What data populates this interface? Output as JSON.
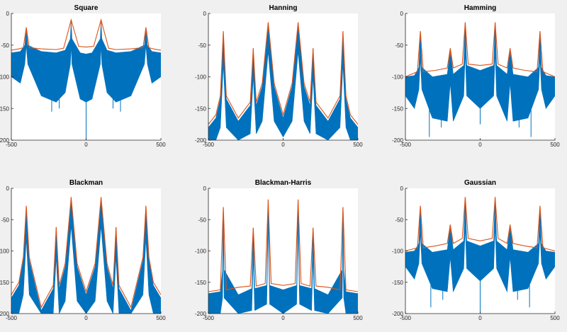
{
  "window": {
    "background": "#f0f0f0"
  },
  "colors": {
    "band": "#0072bd",
    "envelope": "#d95319",
    "axes_bg": "#ffffff",
    "axis_line": "#262626"
  },
  "chart_data": [
    {
      "type": "line",
      "title": "Square",
      "xlim": [
        -500,
        500
      ],
      "ylim": [
        -200,
        0
      ],
      "xticks": [
        -500,
        0,
        500
      ],
      "yticks": [
        0,
        -50,
        -100,
        -150,
        -200
      ],
      "peaks": [
        {
          "x": -400,
          "y": -22
        },
        {
          "x": -100,
          "y": -10
        },
        {
          "x": 100,
          "y": -10
        },
        {
          "x": 400,
          "y": -22
        }
      ],
      "series": [
        {
          "x": [
            -500,
            -450,
            -420,
            -400,
            -380,
            -300,
            -200,
            -150,
            -100,
            -50,
            0,
            50,
            100,
            150,
            200,
            300,
            380,
            400,
            420,
            450,
            500
          ],
          "y": [
            -58,
            -56,
            -54,
            -22,
            -54,
            -56,
            -57,
            -55,
            -10,
            -52,
            -53,
            -52,
            -10,
            -55,
            -57,
            -56,
            -54,
            -22,
            -54,
            -56,
            -58
          ]
        },
        {
          "x": [
            -500,
            -440,
            -410,
            -400,
            -390,
            -300,
            -200,
            -140,
            -105,
            -100,
            -95,
            -40,
            0,
            40,
            95,
            100,
            105,
            140,
            200,
            300,
            390,
            400,
            410,
            440,
            500
          ],
          "upper": [
            -62,
            -60,
            -50,
            -22,
            -50,
            -60,
            -62,
            -58,
            -40,
            -10,
            -40,
            -62,
            -64,
            -62,
            -40,
            -10,
            -40,
            -58,
            -62,
            -60,
            -50,
            -22,
            -50,
            -60,
            -62
          ],
          "lower": [
            -100,
            -110,
            -80,
            -50,
            -80,
            -130,
            -140,
            -125,
            -80,
            -50,
            -80,
            -135,
            -140,
            -135,
            -80,
            -50,
            -80,
            -125,
            -140,
            -130,
            -80,
            -50,
            -80,
            -110,
            -100
          ]
        }
      ],
      "dips": [
        {
          "x": 0,
          "y": -200
        },
        {
          "x": -230,
          "y": -155
        },
        {
          "x": 230,
          "y": -155
        },
        {
          "x": -180,
          "y": -150
        },
        {
          "x": 180,
          "y": -150
        }
      ]
    },
    {
      "type": "line",
      "title": "Hanning",
      "xlim": [
        -500,
        500
      ],
      "ylim": [
        -200,
        0
      ],
      "xticks": [
        -500,
        0,
        500
      ],
      "yticks": [
        0,
        -50,
        -100,
        -150,
        -200
      ],
      "peaks": [
        {
          "x": -400,
          "y": -28
        },
        {
          "x": -200,
          "y": -55
        },
        {
          "x": -100,
          "y": -14
        },
        {
          "x": 100,
          "y": -14
        },
        {
          "x": 200,
          "y": -55
        },
        {
          "x": 400,
          "y": -28
        }
      ],
      "series": [
        {
          "x": [
            -500,
            -450,
            -420,
            -400,
            -380,
            -300,
            -220,
            -200,
            -180,
            -140,
            -100,
            -60,
            0,
            60,
            100,
            140,
            180,
            200,
            220,
            300,
            380,
            400,
            420,
            450,
            500
          ],
          "y": [
            -175,
            -160,
            -130,
            -28,
            -130,
            -165,
            -140,
            -55,
            -140,
            -110,
            -14,
            -110,
            -160,
            -110,
            -14,
            -110,
            -140,
            -55,
            -140,
            -165,
            -130,
            -28,
            -130,
            -160,
            -175
          ]
        },
        {
          "x": [
            -500,
            -450,
            -420,
            -400,
            -380,
            -300,
            -220,
            -200,
            -180,
            -140,
            -100,
            -60,
            0,
            60,
            100,
            140,
            180,
            200,
            220,
            300,
            380,
            400,
            420,
            450,
            500
          ],
          "upper": [
            -180,
            -165,
            -135,
            -30,
            -135,
            -170,
            -145,
            -60,
            -145,
            -115,
            -16,
            -115,
            -165,
            -115,
            -16,
            -115,
            -145,
            -60,
            -145,
            -170,
            -135,
            -30,
            -135,
            -165,
            -180
          ],
          "lower": [
            -200,
            -200,
            -180,
            -80,
            -180,
            -200,
            -190,
            -100,
            -190,
            -170,
            -60,
            -170,
            -195,
            -170,
            -60,
            -170,
            -190,
            -100,
            -190,
            -200,
            -180,
            -80,
            -180,
            -200,
            -200
          ]
        }
      ],
      "dips": []
    },
    {
      "type": "line",
      "title": "Hamming",
      "xlim": [
        -500,
        500
      ],
      "ylim": [
        -200,
        0
      ],
      "xticks": [
        -500,
        0,
        500
      ],
      "yticks": [
        0,
        -50,
        -100,
        -150,
        -200
      ],
      "peaks": [
        {
          "x": -400,
          "y": -28
        },
        {
          "x": -200,
          "y": -55
        },
        {
          "x": -100,
          "y": -14
        },
        {
          "x": 100,
          "y": -14
        },
        {
          "x": 200,
          "y": -55
        },
        {
          "x": 400,
          "y": -28
        }
      ],
      "series": [
        {
          "x": [
            -500,
            -420,
            -400,
            -380,
            -300,
            -220,
            -200,
            -180,
            -120,
            -100,
            -80,
            0,
            80,
            100,
            120,
            180,
            200,
            220,
            300,
            380,
            400,
            420,
            500
          ],
          "y": [
            -100,
            -92,
            -28,
            -92,
            -90,
            -86,
            -55,
            -86,
            -80,
            -14,
            -80,
            -82,
            -80,
            -14,
            -80,
            -86,
            -55,
            -86,
            -90,
            -92,
            -28,
            -92,
            -100
          ]
        },
        {
          "x": [
            -500,
            -440,
            -410,
            -400,
            -390,
            -320,
            -220,
            -200,
            -180,
            -110,
            -100,
            -90,
            0,
            90,
            100,
            110,
            180,
            200,
            220,
            320,
            390,
            400,
            410,
            440,
            500
          ],
          "upper": [
            -100,
            -98,
            -85,
            -30,
            -85,
            -100,
            -96,
            -58,
            -96,
            -82,
            -16,
            -82,
            -90,
            -82,
            -16,
            -82,
            -96,
            -58,
            -96,
            -100,
            -85,
            -30,
            -85,
            -98,
            -100
          ],
          "lower": [
            -130,
            -150,
            -120,
            -70,
            -120,
            -165,
            -170,
            -110,
            -170,
            -130,
            -60,
            -130,
            -150,
            -130,
            -60,
            -130,
            -170,
            -110,
            -170,
            -165,
            -120,
            -70,
            -120,
            -150,
            -130
          ]
        }
      ],
      "dips": [
        {
          "x": -340,
          "y": -195
        },
        {
          "x": 340,
          "y": -195
        },
        {
          "x": -260,
          "y": -180
        },
        {
          "x": 260,
          "y": -180
        },
        {
          "x": 0,
          "y": -175
        }
      ]
    },
    {
      "type": "line",
      "title": "Blackman",
      "xlim": [
        -500,
        500
      ],
      "ylim": [
        -200,
        0
      ],
      "xticks": [
        -500,
        0,
        500
      ],
      "yticks": [
        0,
        -50,
        -100,
        -150,
        -200
      ],
      "peaks": [
        {
          "x": -400,
          "y": -28
        },
        {
          "x": -200,
          "y": -62
        },
        {
          "x": -100,
          "y": -14
        },
        {
          "x": 100,
          "y": -14
        },
        {
          "x": 200,
          "y": -62
        },
        {
          "x": 400,
          "y": -28
        }
      ],
      "series": [
        {
          "x": [
            -500,
            -450,
            -420,
            -400,
            -380,
            -300,
            -220,
            -200,
            -180,
            -140,
            -100,
            -60,
            0,
            60,
            100,
            140,
            180,
            200,
            220,
            300,
            380,
            400,
            420,
            450,
            500
          ],
          "y": [
            -170,
            -150,
            -110,
            -28,
            -110,
            -190,
            -155,
            -62,
            -155,
            -120,
            -14,
            -120,
            -165,
            -120,
            -14,
            -120,
            -155,
            -62,
            -155,
            -190,
            -110,
            -28,
            -110,
            -150,
            -170
          ]
        },
        {
          "x": [
            -500,
            -450,
            -420,
            -400,
            -380,
            -300,
            -220,
            -200,
            -180,
            -140,
            -100,
            -60,
            0,
            60,
            100,
            140,
            180,
            200,
            220,
            300,
            380,
            400,
            420,
            450,
            500
          ],
          "upper": [
            -175,
            -155,
            -115,
            -30,
            -115,
            -195,
            -160,
            -66,
            -160,
            -125,
            -16,
            -125,
            -170,
            -125,
            -16,
            -125,
            -160,
            -66,
            -160,
            -195,
            -115,
            -30,
            -115,
            -155,
            -175
          ],
          "lower": [
            -200,
            -200,
            -170,
            -80,
            -170,
            -200,
            -200,
            -110,
            -200,
            -180,
            -60,
            -180,
            -200,
            -180,
            -60,
            -180,
            -200,
            -110,
            -200,
            -200,
            -170,
            -80,
            -170,
            -200,
            -200
          ]
        }
      ],
      "dips": []
    },
    {
      "type": "line",
      "title": "Blackman-Harris",
      "xlim": [
        -500,
        500
      ],
      "ylim": [
        -200,
        0
      ],
      "xticks": [
        -500,
        0,
        500
      ],
      "yticks": [
        0,
        -50,
        -100,
        -150,
        -200
      ],
      "peaks": [
        {
          "x": -400,
          "y": -30
        },
        {
          "x": -200,
          "y": -63
        },
        {
          "x": -100,
          "y": -18
        },
        {
          "x": 100,
          "y": -18
        },
        {
          "x": 200,
          "y": -63
        },
        {
          "x": 400,
          "y": -30
        }
      ],
      "series": [
        {
          "x": [
            -500,
            -420,
            -400,
            -380,
            -300,
            -220,
            -200,
            -180,
            -120,
            -100,
            -80,
            0,
            80,
            100,
            120,
            180,
            200,
            220,
            300,
            380,
            400,
            420,
            500
          ],
          "y": [
            -165,
            -162,
            -30,
            -162,
            -158,
            -156,
            -63,
            -156,
            -152,
            -18,
            -152,
            -155,
            -152,
            -18,
            -152,
            -156,
            -63,
            -156,
            -158,
            -162,
            -30,
            -162,
            -165
          ]
        },
        {
          "x": [
            -500,
            -420,
            -405,
            -400,
            -395,
            -300,
            -210,
            -200,
            -190,
            -110,
            -100,
            -90,
            0,
            90,
            100,
            110,
            190,
            200,
            210,
            300,
            395,
            400,
            405,
            420,
            500
          ],
          "upper": [
            -168,
            -165,
            -130,
            -32,
            -130,
            -170,
            -160,
            -66,
            -160,
            -155,
            -20,
            -155,
            -162,
            -155,
            -20,
            -155,
            -160,
            -66,
            -160,
            -170,
            -130,
            -32,
            -130,
            -165,
            -168
          ],
          "lower": [
            -200,
            -200,
            -175,
            -80,
            -175,
            -200,
            -195,
            -110,
            -195,
            -185,
            -60,
            -185,
            -200,
            -185,
            -60,
            -185,
            -195,
            -110,
            -195,
            -200,
            -175,
            -80,
            -175,
            -200,
            -200
          ]
        }
      ],
      "dips": []
    },
    {
      "type": "line",
      "title": "Gaussian",
      "xlim": [
        -500,
        500
      ],
      "ylim": [
        -200,
        0
      ],
      "xticks": [
        -500,
        0,
        500
      ],
      "yticks": [
        0,
        -50,
        -100,
        -150,
        -200
      ],
      "peaks": [
        {
          "x": -400,
          "y": -28
        },
        {
          "x": -200,
          "y": -58
        },
        {
          "x": -100,
          "y": -14
        },
        {
          "x": 100,
          "y": -14
        },
        {
          "x": 200,
          "y": -58
        },
        {
          "x": 400,
          "y": -28
        }
      ],
      "series": [
        {
          "x": [
            -500,
            -420,
            -400,
            -380,
            -300,
            -220,
            -200,
            -180,
            -120,
            -100,
            -80,
            0,
            80,
            100,
            120,
            180,
            200,
            220,
            300,
            380,
            400,
            420,
            500
          ],
          "y": [
            -100,
            -95,
            -28,
            -95,
            -92,
            -88,
            -58,
            -88,
            -80,
            -14,
            -80,
            -84,
            -80,
            -14,
            -80,
            -88,
            -58,
            -88,
            -92,
            -95,
            -28,
            -95,
            -100
          ]
        },
        {
          "x": [
            -500,
            -440,
            -410,
            -400,
            -390,
            -320,
            -220,
            -200,
            -180,
            -110,
            -100,
            -90,
            0,
            90,
            100,
            110,
            180,
            200,
            220,
            320,
            390,
            400,
            410,
            440,
            500
          ],
          "upper": [
            -102,
            -100,
            -88,
            -30,
            -88,
            -102,
            -98,
            -60,
            -98,
            -84,
            -16,
            -84,
            -92,
            -84,
            -16,
            -84,
            -98,
            -60,
            -98,
            -102,
            -88,
            -30,
            -88,
            -100,
            -102
          ],
          "lower": [
            -125,
            -145,
            -120,
            -70,
            -120,
            -160,
            -165,
            -110,
            -165,
            -128,
            -60,
            -128,
            -148,
            -128,
            -60,
            -128,
            -165,
            -110,
            -165,
            -160,
            -120,
            -70,
            -120,
            -145,
            -125
          ]
        }
      ],
      "dips": [
        {
          "x": -330,
          "y": -190
        },
        {
          "x": 330,
          "y": -190
        },
        {
          "x": -250,
          "y": -178
        },
        {
          "x": 250,
          "y": -178
        },
        {
          "x": 0,
          "y": -200
        }
      ]
    }
  ]
}
